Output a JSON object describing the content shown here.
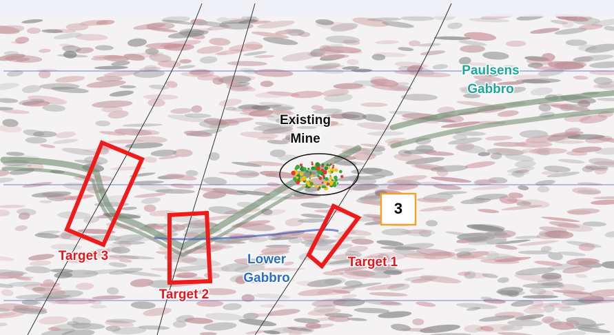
{
  "annotations": {
    "paulsens_gabbro": [
      "Paulsens",
      "Gabbro"
    ],
    "existing_mine": [
      "Existing",
      "Mine"
    ],
    "lower_gabbro": [
      "Lower",
      "Gabbro"
    ],
    "target_1": "Target 1",
    "target_2": "Target 2",
    "target_3": "Target 3",
    "section_number": "3"
  }
}
